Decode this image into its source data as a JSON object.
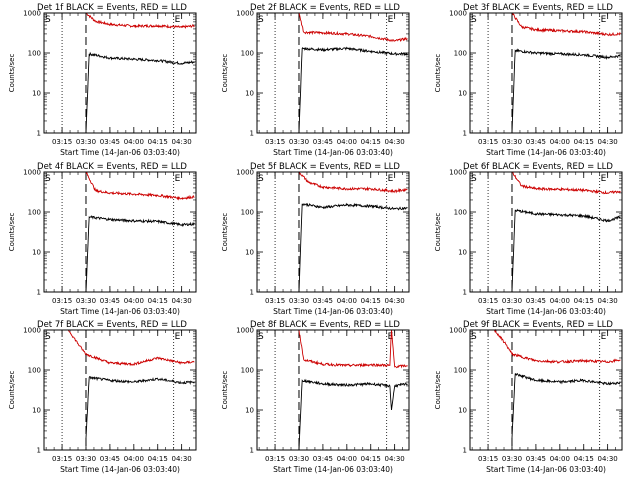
{
  "chart_data": [
    {
      "type": "line",
      "title": "Det 1f BLACK = Events, RED = LLD",
      "ylabel": "Counts/sec",
      "xlabel": "Start Time (14-Jan-06 03:03:40)",
      "yscale": "log",
      "ylim": [
        1,
        1000
      ],
      "xlim": [
        "03:03:40",
        "04:39:00"
      ],
      "x_ticks": [
        "03:15",
        "03:30",
        "03:45",
        "04:00",
        "04:15",
        "04:30"
      ],
      "y_ticks": [
        "1",
        "10",
        "100",
        "1000"
      ],
      "markers": [
        "S",
        "E"
      ],
      "dotted_lines": [
        "03:15",
        "04:25"
      ],
      "dashed_line": "03:30",
      "series": [
        {
          "color": "#cc0000",
          "x": [
            "03:30",
            "03:36",
            "03:45",
            "04:00",
            "04:15",
            "04:30",
            "04:38"
          ],
          "y": [
            1000,
            620,
            520,
            470,
            480,
            440,
            480
          ]
        },
        {
          "color": "#000000",
          "x": [
            "03:30",
            "03:32",
            "03:45",
            "04:00",
            "04:15",
            "04:30",
            "04:38"
          ],
          "y": [
            1,
            95,
            75,
            70,
            65,
            55,
            60
          ]
        }
      ]
    },
    {
      "type": "line",
      "title": "Det 2f BLACK = Events, RED = LLD",
      "ylabel": "Counts/sec",
      "xlabel": "Start Time (14-Jan-06 03:03:40)",
      "yscale": "log",
      "ylim": [
        1,
        1000
      ],
      "xlim": [
        "03:03:40",
        "04:39:00"
      ],
      "x_ticks": [
        "03:15",
        "03:30",
        "03:45",
        "04:00",
        "04:15",
        "04:30"
      ],
      "y_ticks": [
        "1",
        "10",
        "100",
        "1000"
      ],
      "markers": [
        "S",
        "E"
      ],
      "dotted_lines": [
        "03:15",
        "04:25"
      ],
      "dashed_line": "03:30",
      "series": [
        {
          "color": "#cc0000",
          "x": [
            "03:30",
            "03:33",
            "03:45",
            "04:00",
            "04:15",
            "04:30",
            "04:38"
          ],
          "y": [
            1000,
            330,
            320,
            300,
            260,
            200,
            230
          ]
        },
        {
          "color": "#000000",
          "x": [
            "03:30",
            "03:32",
            "03:45",
            "04:00",
            "04:15",
            "04:30",
            "04:38"
          ],
          "y": [
            1,
            130,
            120,
            130,
            110,
            95,
            95
          ]
        }
      ]
    },
    {
      "type": "line",
      "title": "Det 3f BLACK = Events, RED = LLD",
      "ylabel": "Counts/sec",
      "xlabel": "Start Time (14-Jan-06 03:03:40)",
      "yscale": "log",
      "ylim": [
        1,
        1000
      ],
      "xlim": [
        "03:03:40",
        "04:39:00"
      ],
      "x_ticks": [
        "03:15",
        "03:30",
        "03:45",
        "04:00",
        "04:15",
        "04:30"
      ],
      "y_ticks": [
        "1",
        "10",
        "100",
        "1000"
      ],
      "markers": [
        "S",
        "E"
      ],
      "dotted_lines": [
        "03:15",
        "04:25"
      ],
      "dashed_line": "03:30",
      "series": [
        {
          "color": "#cc0000",
          "x": [
            "03:30",
            "03:36",
            "03:45",
            "04:00",
            "04:15",
            "04:30",
            "04:38"
          ],
          "y": [
            1000,
            450,
            380,
            360,
            340,
            290,
            300
          ]
        },
        {
          "color": "#000000",
          "x": [
            "03:30",
            "03:32",
            "03:45",
            "04:00",
            "04:15",
            "04:30",
            "04:38"
          ],
          "y": [
            1,
            115,
            100,
            95,
            90,
            78,
            85
          ]
        }
      ]
    },
    {
      "type": "line",
      "title": "Det 4f BLACK = Events, RED = LLD",
      "ylabel": "Counts/sec",
      "xlabel": "Start Time (14-Jan-06 03:03:40)",
      "yscale": "log",
      "ylim": [
        1,
        1000
      ],
      "xlim": [
        "03:03:40",
        "04:39:00"
      ],
      "x_ticks": [
        "03:15",
        "03:30",
        "03:45",
        "04:00",
        "04:15",
        "04:30"
      ],
      "y_ticks": [
        "1",
        "10",
        "100",
        "1000"
      ],
      "markers": [
        "S",
        "E"
      ],
      "dotted_lines": [
        "03:15",
        "04:25"
      ],
      "dashed_line": "03:30",
      "series": [
        {
          "color": "#cc0000",
          "x": [
            "03:30",
            "03:36",
            "03:45",
            "04:00",
            "04:15",
            "04:30",
            "04:38"
          ],
          "y": [
            1000,
            340,
            300,
            280,
            260,
            220,
            240
          ]
        },
        {
          "color": "#000000",
          "x": [
            "03:30",
            "03:32",
            "03:45",
            "04:00",
            "04:15",
            "04:30",
            "04:38"
          ],
          "y": [
            1,
            75,
            65,
            60,
            58,
            48,
            50
          ]
        }
      ]
    },
    {
      "type": "line",
      "title": "Det 5f BLACK = Events, RED = LLD",
      "ylabel": "Counts/sec",
      "xlabel": "Start Time (14-Jan-06 03:03:40)",
      "yscale": "log",
      "ylim": [
        1,
        1000
      ],
      "xlim": [
        "03:03:40",
        "04:39:00"
      ],
      "x_ticks": [
        "03:15",
        "03:30",
        "03:45",
        "04:00",
        "04:15",
        "04:30"
      ],
      "y_ticks": [
        "1",
        "10",
        "100",
        "1000"
      ],
      "markers": [
        "S",
        "E"
      ],
      "dotted_lines": [
        "03:15",
        "04:25"
      ],
      "dashed_line": "03:30",
      "series": [
        {
          "color": "#cc0000",
          "x": [
            "03:30",
            "03:36",
            "03:45",
            "04:00",
            "04:15",
            "04:30",
            "04:38"
          ],
          "y": [
            1000,
            550,
            420,
            380,
            380,
            330,
            370
          ]
        },
        {
          "color": "#000000",
          "x": [
            "03:30",
            "03:32",
            "03:45",
            "04:00",
            "04:15",
            "04:30",
            "04:38"
          ],
          "y": [
            1,
            160,
            130,
            150,
            140,
            120,
            125
          ]
        }
      ]
    },
    {
      "type": "line",
      "title": "Det 6f BLACK = Events, RED = LLD",
      "ylabel": "Counts/sec",
      "xlabel": "Start Time (14-Jan-06 03:03:40)",
      "yscale": "log",
      "ylim": [
        1,
        1000
      ],
      "xlim": [
        "03:03:40",
        "04:39:00"
      ],
      "x_ticks": [
        "03:15",
        "03:30",
        "03:45",
        "04:00",
        "04:15",
        "04:30"
      ],
      "y_ticks": [
        "1",
        "10",
        "100",
        "1000"
      ],
      "markers": [
        "S",
        "E"
      ],
      "dotted_lines": [
        "03:15",
        "04:25"
      ],
      "dashed_line": "03:30",
      "series": [
        {
          "color": "#cc0000",
          "x": [
            "03:30",
            "03:36",
            "03:45",
            "04:00",
            "04:15",
            "04:30",
            "04:38"
          ],
          "y": [
            1000,
            450,
            380,
            370,
            350,
            300,
            330
          ]
        },
        {
          "color": "#000000",
          "x": [
            "03:30",
            "03:32",
            "03:45",
            "04:00",
            "04:15",
            "04:30",
            "04:38"
          ],
          "y": [
            1,
            110,
            90,
            85,
            80,
            60,
            75
          ]
        }
      ]
    },
    {
      "type": "line",
      "title": "Det 7f BLACK = Events, RED = LLD",
      "ylabel": "Counts/sec",
      "xlabel": "Start Time (14-Jan-06 03:03:40)",
      "yscale": "log",
      "ylim": [
        1,
        1000
      ],
      "xlim": [
        "03:03:40",
        "04:39:00"
      ],
      "x_ticks": [
        "03:15",
        "03:30",
        "03:45",
        "04:00",
        "04:15",
        "04:30"
      ],
      "y_ticks": [
        "1",
        "10",
        "100",
        "1000"
      ],
      "markers": [
        "S",
        "E"
      ],
      "dotted_lines": [
        "03:15",
        "04:25"
      ],
      "dashed_line": "03:30",
      "series": [
        {
          "color": "#cc0000",
          "x": [
            "03:19",
            "03:26",
            "03:30",
            "03:45",
            "04:00",
            "04:15",
            "04:30",
            "04:38"
          ],
          "y": [
            1000,
            400,
            250,
            150,
            140,
            200,
            150,
            160
          ]
        },
        {
          "color": "#000000",
          "x": [
            "03:30",
            "03:32",
            "03:45",
            "04:00",
            "04:15",
            "04:30",
            "04:38"
          ],
          "y": [
            2,
            65,
            55,
            50,
            60,
            48,
            50
          ]
        }
      ]
    },
    {
      "type": "line",
      "title": "Det 8f BLACK = Events, RED = LLD",
      "ylabel": "Counts/sec",
      "xlabel": "Start Time (14-Jan-06 03:03:40)",
      "yscale": "log",
      "ylim": [
        1,
        1000
      ],
      "xlim": [
        "03:03:40",
        "04:39:00"
      ],
      "x_ticks": [
        "03:15",
        "03:30",
        "03:45",
        "04:00",
        "04:15",
        "04:30"
      ],
      "y_ticks": [
        "1",
        "10",
        "100",
        "1000"
      ],
      "markers": [
        "S",
        "E"
      ],
      "dotted_lines": [
        "03:15",
        "04:25"
      ],
      "dashed_line": "03:30",
      "series": [
        {
          "color": "#cc0000",
          "x": [
            "03:30",
            "03:33",
            "03:45",
            "04:00",
            "04:15",
            "04:27",
            "04:28",
            "04:30",
            "04:38"
          ],
          "y": [
            1000,
            180,
            140,
            130,
            135,
            130,
            1000,
            120,
            130
          ]
        },
        {
          "color": "#000000",
          "x": [
            "03:30",
            "03:32",
            "03:45",
            "04:00",
            "04:15",
            "04:27",
            "04:28",
            "04:30",
            "04:38"
          ],
          "y": [
            1,
            55,
            45,
            42,
            45,
            40,
            10,
            40,
            45
          ]
        }
      ]
    },
    {
      "type": "line",
      "title": "Det 9f BLACK = Events, RED = LLD",
      "ylabel": "Counts/sec",
      "xlabel": "Start Time (14-Jan-06 03:03:40)",
      "yscale": "log",
      "ylim": [
        1,
        1000
      ],
      "xlim": [
        "03:03:40",
        "04:39:00"
      ],
      "x_ticks": [
        "03:15",
        "03:30",
        "03:45",
        "04:00",
        "04:15",
        "04:30"
      ],
      "y_ticks": [
        "1",
        "10",
        "100",
        "1000"
      ],
      "markers": [
        "S",
        "E"
      ],
      "dotted_lines": [
        "03:15",
        "04:25"
      ],
      "dashed_line": "03:30",
      "series": [
        {
          "color": "#cc0000",
          "x": [
            "03:19",
            "03:26",
            "03:30",
            "03:45",
            "04:00",
            "04:15",
            "04:30",
            "04:38"
          ],
          "y": [
            1000,
            450,
            250,
            170,
            160,
            170,
            160,
            180
          ]
        },
        {
          "color": "#000000",
          "x": [
            "03:30",
            "03:32",
            "03:45",
            "04:00",
            "04:15",
            "04:30",
            "04:38"
          ],
          "y": [
            2,
            80,
            55,
            50,
            55,
            45,
            48
          ]
        }
      ]
    }
  ]
}
